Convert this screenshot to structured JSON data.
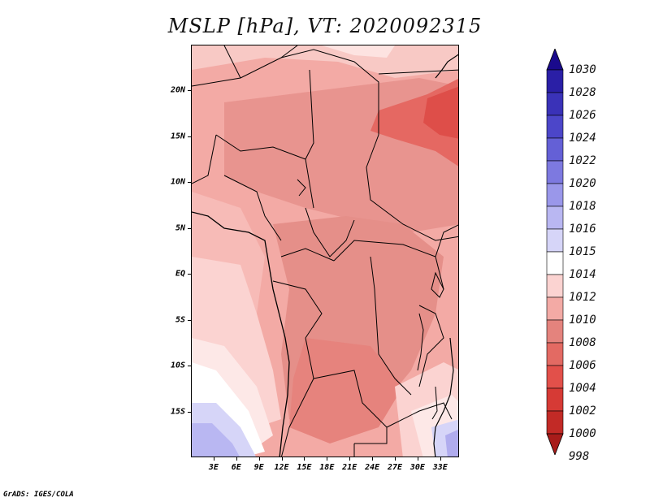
{
  "title": "MSLP [hPa], VT: 2020092315",
  "credit": "GrADS: IGES/COLA",
  "axes": {
    "lat_labels": [
      "20N",
      "15N",
      "10N",
      "5N",
      "EQ",
      "5S",
      "10S",
      "15S"
    ],
    "lat_values": [
      20,
      15,
      10,
      5,
      0,
      -5,
      -10,
      -15
    ],
    "lon_labels": [
      "3E",
      "6E",
      "9E",
      "12E",
      "15E",
      "18E",
      "21E",
      "24E",
      "27E",
      "30E",
      "33E"
    ],
    "lon_values": [
      3,
      6,
      9,
      12,
      15,
      18,
      21,
      24,
      27,
      30,
      33
    ],
    "lon_range": [
      0,
      35.5
    ],
    "lat_range": [
      -20,
      25
    ]
  },
  "colorbar": {
    "labels": [
      "1030",
      "1028",
      "1026",
      "1024",
      "1022",
      "1020",
      "1018",
      "1016",
      "1015",
      "1014",
      "1012",
      "1010",
      "1008",
      "1006",
      "1004",
      "1002",
      "1000",
      "998"
    ],
    "colors": [
      "#1a0a8c",
      "#2a1fa6",
      "#3a32b8",
      "#4c46c9",
      "#6460d6",
      "#7d79e0",
      "#9a97ea",
      "#b9b7f2",
      "#d6d5f8",
      "#ffffff",
      "#fbd3d1",
      "#f3aaa5",
      "#e4837d",
      "#e36a63",
      "#e2504a",
      "#d63a35",
      "#c22a26",
      "#a81c1a"
    ]
  },
  "map_regions": [
    {
      "name": "sahara-north",
      "color": "#f5c3c0"
    },
    {
      "name": "sahel-core",
      "color": "#e89a95"
    },
    {
      "name": "low-east-sudan",
      "color": "#e05a54"
    },
    {
      "name": "congo-basin",
      "color": "#e3908a"
    },
    {
      "name": "atlantic-coast",
      "color": "#fbd3d1"
    },
    {
      "name": "ocean-south",
      "color": "#fde8e7"
    },
    {
      "name": "high-southwest",
      "color": "#c8c4f4"
    },
    {
      "name": "high-southeast",
      "color": "#b0acee"
    }
  ]
}
